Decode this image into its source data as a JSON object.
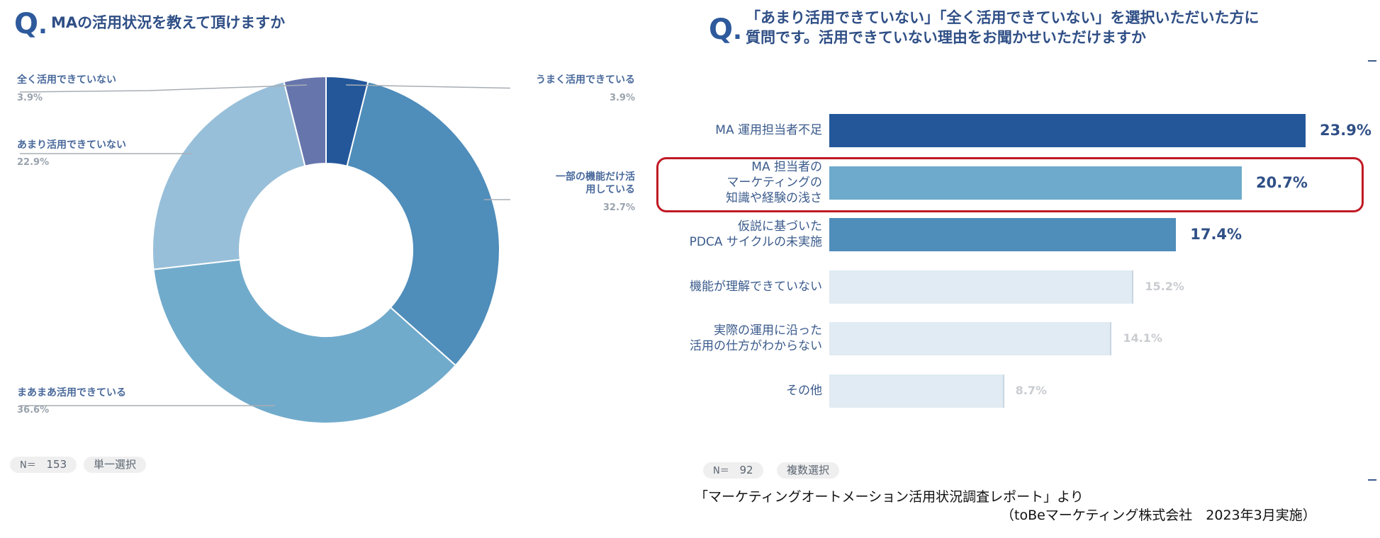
{
  "left_panel": {
    "q_mark": "Q",
    "question": "MAの活用状況を教えて頂けますか",
    "n_label": "N＝",
    "n_value": "153",
    "selection_type": "単一選択"
  },
  "right_panel": {
    "q_mark": "Q",
    "question_line1": "「あまり活用できていない」「全く活用できていない」を選択いただいた方に",
    "question_line2": "質問です。活用できていない理由をお聞かせいただけますか",
    "n_label": "N＝",
    "n_value": "92",
    "selection_type": "複数選択"
  },
  "source_line1": "「マーケティングオートメーション活用状況調査レポート」より",
  "source_line2": "（toBeマーケティング株式会社　2023年3月実施）",
  "chart_data": [
    {
      "type": "pie",
      "donut": true,
      "title": "MAの活用状況を教えて頂けますか",
      "slices": [
        {
          "label": "うまく活用できている",
          "value": 3.9,
          "display": "3.9%",
          "color": "#23579a"
        },
        {
          "label": "一部の機能だけ活用している",
          "value": 32.7,
          "display": "32.7%",
          "color": "#4f8dba"
        },
        {
          "label": "まあまあ活用できている",
          "value": 36.6,
          "display": "36.6%",
          "color": "#71abcc"
        },
        {
          "label": "あまり活用できていない",
          "value": 22.9,
          "display": "22.9%",
          "color": "#98bfd9"
        },
        {
          "label": "全く活用できていない",
          "value": 3.9,
          "display": "3.9%",
          "color": "#6775ad"
        }
      ]
    },
    {
      "type": "bar",
      "orientation": "horizontal",
      "title": "「あまり活用できていない」「全く活用できていない」を選択いただいた方に質問です。活用できていない理由をお聞かせいただけますか",
      "categories": [
        "MA 運用担当者不足",
        "MA 担当者の マーケティングの 知識や経験の浅さ",
        "仮説に基づいた PDCA サイクルの未実施",
        "機能が理解できていない",
        "実際の運用に沿った 活用の仕方がわからない",
        "その他"
      ],
      "category_lines": [
        [
          "MA 運用担当者不足"
        ],
        [
          "MA 担当者の",
          "マーケティングの",
          "知識や経験の浅さ"
        ],
        [
          "仮説に基づいた",
          "PDCA サイクルの未実施"
        ],
        [
          "機能が理解できていない"
        ],
        [
          "実際の運用に沿った",
          "活用の仕方がわからない"
        ],
        [
          "その他"
        ]
      ],
      "values": [
        23.9,
        20.7,
        17.4,
        15.2,
        14.1,
        8.7
      ],
      "value_labels": [
        "23.9%",
        "20.7%",
        "17.4%",
        "15.2%",
        "14.1%",
        "8.7%"
      ],
      "colors": [
        "#23579a",
        "#6eaacb",
        "#4f8dba",
        "#e0ebf3",
        "#e0ebf3",
        "#e0ebf3"
      ],
      "highlighted_index": 1,
      "highlight_color": "#c01a25"
    }
  ]
}
